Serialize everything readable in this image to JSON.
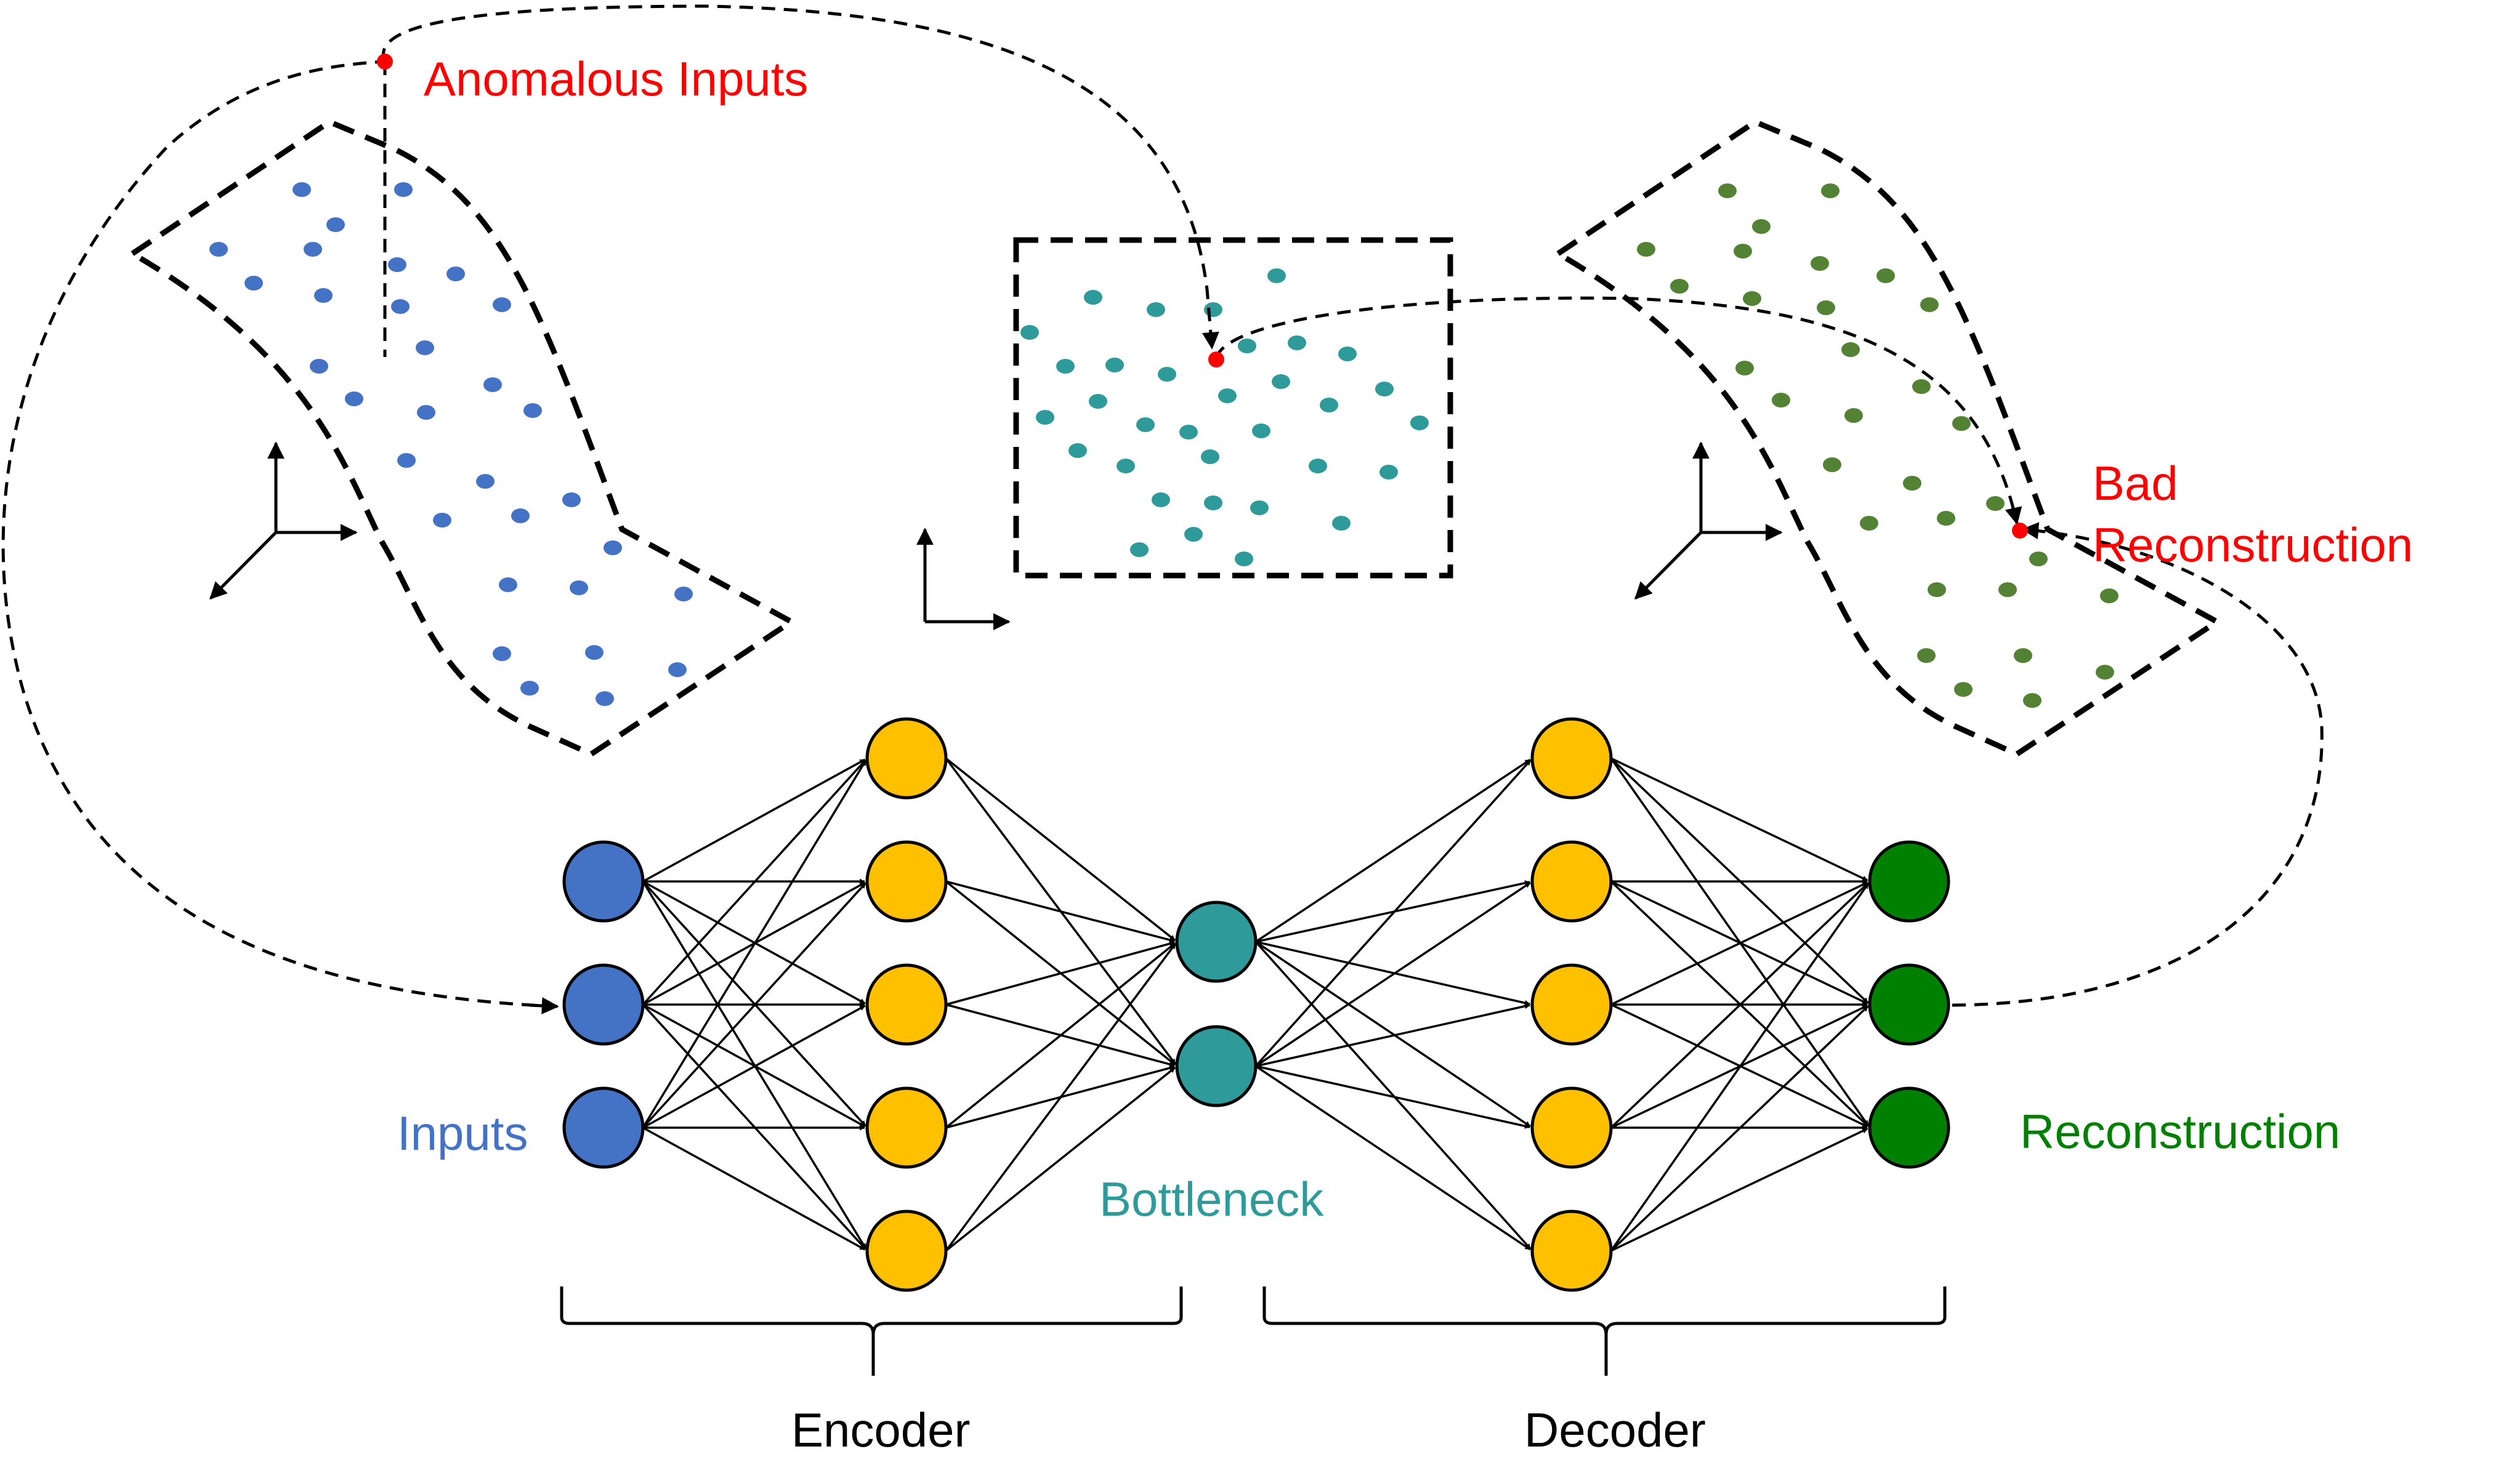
{
  "labels": {
    "anomalous_inputs": "Anomalous Inputs",
    "bad": "Bad",
    "reconstruction_error": "Reconstruction",
    "inputs": "Inputs",
    "bottleneck": "Bottleneck",
    "reconstruction": "Reconstruction",
    "encoder": "Encoder",
    "decoder": "Decoder"
  },
  "colors": {
    "inputs": "#4472c4",
    "hidden": "#ffc000",
    "bottleneck": "#2e9a9a",
    "reconstruction": "#008000",
    "input_points": "#4472c4",
    "latent_points": "#2e9a9a",
    "output_points": "#548235",
    "anomaly": "#ff0000",
    "line": "#000000"
  },
  "network": {
    "layers": [
      {
        "name": "inputs",
        "count": 3
      },
      {
        "name": "encoder-hidden",
        "count": 5
      },
      {
        "name": "bottleneck",
        "count": 2
      },
      {
        "name": "decoder-hidden",
        "count": 5
      },
      {
        "name": "reconstruction",
        "count": 3
      }
    ]
  }
}
